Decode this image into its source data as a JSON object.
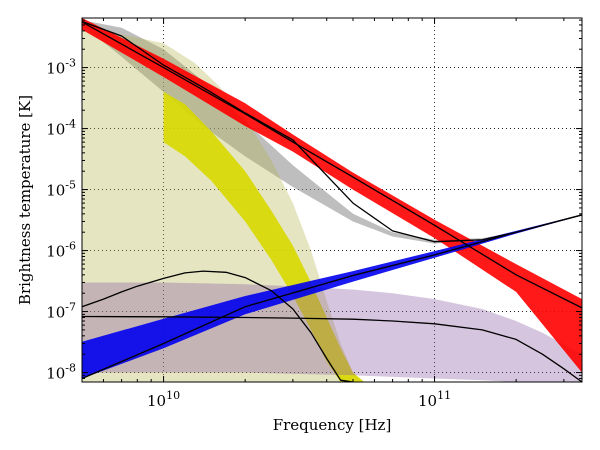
{
  "chart_data": {
    "type": "line",
    "title": "",
    "xlabel": "Frequency [Hz]",
    "ylabel": "Brightness temperature [K]",
    "xscale": "log",
    "yscale": "log",
    "xlim": [
      5000000000.0,
      350000000000.0
    ],
    "ylim": [
      7e-09,
      0.0065
    ],
    "grid": true,
    "legend": "none",
    "x_ticks": [
      {
        "value": 10000000000.0,
        "mant": "10",
        "exp": "10"
      },
      {
        "value": 100000000000.0,
        "mant": "10",
        "exp": "11"
      }
    ],
    "y_ticks": [
      {
        "value": 1e-08,
        "mant": "10",
        "exp": "-8"
      },
      {
        "value": 1e-07,
        "mant": "10",
        "exp": "-7"
      },
      {
        "value": 1e-06,
        "mant": "10",
        "exp": "-6"
      },
      {
        "value": 1e-05,
        "mant": "10",
        "exp": "-5"
      },
      {
        "value": 0.0001,
        "mant": "10",
        "exp": "-4"
      },
      {
        "value": 0.001,
        "mant": "10",
        "exp": "-3"
      }
    ],
    "series": [
      {
        "color": "#888888",
        "style": "band",
        "x": [
          5000000000.0,
          7000000000.0,
          10000000000.0,
          14000000000.0,
          20000000000.0,
          30000000000.0,
          50000000000.0,
          70000000000.0,
          100000000000.0,
          150000000000.0,
          200000000000.0,
          350000000000.0
        ],
        "upper": [
          0.006,
          0.0045,
          0.002,
          0.0006,
          0.00013,
          2.5e-05,
          4e-06,
          2e-06,
          1.5e-06,
          1.6e-06,
          2e-06,
          3.9e-06
        ],
        "lower": [
          0.005,
          0.0015,
          0.0004,
          0.00011,
          3.5e-05,
          1.1e-05,
          3e-06,
          1.7e-06,
          1.3e-06,
          1.5e-06,
          2e-06,
          3.8e-06
        ]
      },
      {
        "color": "#b5b550",
        "style": "band",
        "x": [
          5000000000.0,
          7000000000.0,
          10000000000.0,
          13000000000.0,
          16000000000.0,
          20000000000.0,
          25000000000.0,
          30000000000.0,
          35000000000.0,
          40000000000.0,
          45000000000.0,
          50000000000.0,
          55000000000.0
        ],
        "upper": [
          0.004,
          0.0035,
          0.0025,
          0.0012,
          0.0005,
          0.00015,
          3e-05,
          6e-06,
          1e-06,
          1.5e-07,
          3e-08,
          1e-08,
          7e-09
        ],
        "lower": [
          7e-09,
          7e-09,
          7e-09,
          7e-09,
          7e-09,
          7e-09,
          7e-09,
          7e-09,
          7e-09,
          7e-09,
          7e-09,
          7e-09,
          7e-09
        ]
      },
      {
        "color": "#d8d800",
        "style": "band",
        "x": [
          10000000000.0,
          12000000000.0,
          15000000000.0,
          20000000000.0,
          25000000000.0,
          30000000000.0,
          35000000000.0,
          40000000000.0,
          45000000000.0,
          50000000000.0,
          55000000000.0
        ],
        "upper": [
          0.0004,
          0.00025,
          9e-05,
          2e-05,
          4.5e-06,
          1.2e-06,
          3e-07,
          8e-08,
          2.5e-08,
          1e-08,
          7e-09
        ],
        "lower": [
          6e-05,
          3.5e-05,
          1.4e-05,
          3e-06,
          7e-07,
          1.8e-07,
          5e-08,
          1.5e-08,
          7e-09,
          7e-09,
          7e-09
        ]
      },
      {
        "color": "#8a5aa0",
        "style": "band",
        "x": [
          5000000000.0,
          10000000000.0,
          20000000000.0,
          30000000000.0,
          50000000000.0,
          70000000000.0,
          100000000000.0,
          150000000000.0,
          200000000000.0,
          250000000000.0,
          350000000000.0
        ],
        "upper": [
          3e-07,
          3e-07,
          2.8e-07,
          2.6e-07,
          2.3e-07,
          2e-07,
          1.6e-07,
          1.1e-07,
          7e-08,
          4.5e-08,
          2e-08
        ],
        "lower": [
          1e-08,
          1e-08,
          1e-08,
          9.5e-09,
          9e-09,
          8.5e-09,
          8e-09,
          7.5e-09,
          7e-09,
          7e-09,
          7e-09
        ]
      },
      {
        "color": "#ff0000",
        "style": "band",
        "x": [
          5000000000.0,
          10000000000.0,
          20000000000.0,
          30000000000.0,
          50000000000.0,
          100000000000.0,
          200000000000.0,
          350000000000.0
        ],
        "upper": [
          0.0065,
          0.0014,
          0.00026,
          8e-05,
          1.9e-05,
          3.2e-06,
          6e-07,
          1.6e-07
        ],
        "lower": [
          0.0042,
          0.0007,
          0.00011,
          4.2e-05,
          1e-05,
          1.6e-06,
          2.1e-07,
          1e-08
        ]
      },
      {
        "color": "#0000ee",
        "style": "band",
        "x": [
          5000000000.0,
          10000000000.0,
          20000000000.0,
          50000000000.0,
          100000000000.0,
          200000000000.0,
          350000000000.0
        ],
        "upper": [
          3.2e-08,
          7.6e-08,
          1.8e-07,
          4.6e-07,
          9.8e-07,
          2.1e-06,
          3.9e-06
        ],
        "lower": [
          8e-09,
          2.5e-08,
          9e-08,
          3.1e-07,
          7.6e-07,
          1.9e-06,
          3.8e-06
        ]
      },
      {
        "color": "#000000",
        "style": "line",
        "x": [
          5000000000.0,
          10000000000.0,
          20000000000.0,
          30000000000.0,
          50000000000.0,
          100000000000.0,
          200000000000.0,
          350000000000.0
        ],
        "y": [
          0.0056,
          0.001,
          0.000175,
          6e-05,
          1.6e-05,
          2.6e-06,
          4e-07,
          1.15e-07
        ]
      },
      {
        "color": "#000000",
        "style": "line",
        "x": [
          5000000000.0,
          10000000000.0,
          20000000000.0,
          50000000000.0,
          100000000000.0,
          200000000000.0,
          350000000000.0
        ],
        "y": [
          8e-09,
          3e-08,
          1.2e-07,
          3.9e-07,
          8.5e-07,
          2e-06,
          3.85e-06
        ]
      },
      {
        "color": "#000000",
        "style": "line",
        "x": [
          5000000000.0,
          7000000000.0,
          10000000000.0,
          14000000000.0,
          20000000000.0,
          30000000000.0,
          50000000000.0,
          70000000000.0,
          100000000000.0,
          150000000000.0,
          200000000000.0,
          350000000000.0
        ],
        "y": [
          0.0057,
          0.0033,
          0.0011,
          0.00047,
          0.00018,
          6.5e-05,
          6e-06,
          2.1e-06,
          1.4e-06,
          1.5e-06,
          2e-06,
          3.85e-06
        ]
      },
      {
        "color": "#000000",
        "style": "line",
        "x": [
          5000000000.0,
          6000000000.0,
          7000000000.0,
          8000000000.0,
          10000000000.0,
          12000000000.0,
          14000000000.0,
          17000000000.0,
          20000000000.0,
          25000000000.0,
          30000000000.0,
          35000000000.0,
          40000000000.0,
          45000000000.0,
          50000000000.0
        ],
        "y": [
          1.2e-07,
          1.6e-07,
          2.1e-07,
          2.6e-07,
          3.5e-07,
          4.3e-07,
          4.6e-07,
          4.4e-07,
          3.6e-07,
          2.2e-07,
          1.1e-07,
          4.5e-08,
          1.7e-08,
          7.5e-09,
          7e-09
        ]
      },
      {
        "color": "#000000",
        "style": "line",
        "x": [
          5000000000.0,
          10000000000.0,
          20000000000.0,
          30000000000.0,
          50000000000.0,
          70000000000.0,
          100000000000.0,
          150000000000.0,
          200000000000.0,
          250000000000.0,
          300000000000.0,
          350000000000.0
        ],
        "y": [
          8.3e-08,
          8.2e-08,
          8e-08,
          7.8e-08,
          7.5e-08,
          7e-08,
          6.3e-08,
          5e-08,
          3.5e-08,
          2e-08,
          1.15e-08,
          7e-09
        ]
      }
    ]
  }
}
